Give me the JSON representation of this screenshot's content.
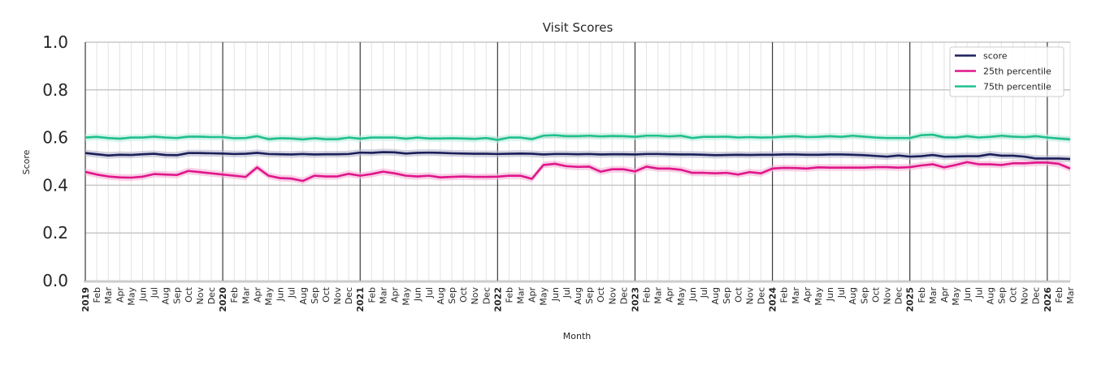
{
  "chart_data": {
    "type": "line",
    "title": "Visit Scores",
    "xlabel": "Month",
    "ylabel": "Score",
    "ylim": [
      0.0,
      1.0
    ],
    "yticks": [
      "0.0",
      "0.2",
      "0.4",
      "0.6",
      "0.8",
      "1.0"
    ],
    "grid": true,
    "legend_position": "upper right",
    "x_start": "2019-01",
    "x_end": "2026-03",
    "x_tick_labels": [
      "2019",
      "Feb",
      "Mar",
      "Apr",
      "May",
      "Jun",
      "Jul",
      "Aug",
      "Sep",
      "Oct",
      "Nov",
      "Dec",
      "2020",
      "Feb",
      "Mar",
      "Apr",
      "May",
      "Jun",
      "Jul",
      "Aug",
      "Sep",
      "Oct",
      "Nov",
      "Dec",
      "2021",
      "Feb",
      "Mar",
      "Apr",
      "May",
      "Jun",
      "Jul",
      "Aug",
      "Sep",
      "Oct",
      "Nov",
      "Dec",
      "2022",
      "Feb",
      "Mar",
      "Apr",
      "May",
      "Jun",
      "Jul",
      "Aug",
      "Sep",
      "Oct",
      "Nov",
      "Dec",
      "2023",
      "Feb",
      "Mar",
      "Apr",
      "May",
      "Jun",
      "Jul",
      "Aug",
      "Sep",
      "Oct",
      "Nov",
      "Dec",
      "2024",
      "Feb",
      "Mar",
      "Apr",
      "May",
      "Jun",
      "Jul",
      "Aug",
      "Sep",
      "Oct",
      "Nov",
      "Dec",
      "2025",
      "Feb",
      "Mar",
      "Apr",
      "May",
      "Jun",
      "Jul",
      "Aug",
      "Sep",
      "Oct",
      "Nov",
      "Dec",
      "2026",
      "Feb",
      "Mar"
    ],
    "series": [
      {
        "name": "score",
        "color": "#1b1f5a",
        "band_color": "#b5b8cb",
        "values": [
          0.535,
          0.53,
          0.525,
          0.528,
          0.527,
          0.53,
          0.532,
          0.527,
          0.526,
          0.535,
          0.535,
          0.534,
          0.533,
          0.531,
          0.532,
          0.536,
          0.531,
          0.53,
          0.529,
          0.531,
          0.529,
          0.53,
          0.53,
          0.531,
          0.537,
          0.536,
          0.539,
          0.538,
          0.533,
          0.536,
          0.537,
          0.536,
          0.534,
          0.533,
          0.532,
          0.532,
          0.531,
          0.532,
          0.533,
          0.532,
          0.529,
          0.531,
          0.531,
          0.53,
          0.531,
          0.529,
          0.53,
          0.53,
          0.529,
          0.531,
          0.531,
          0.53,
          0.529,
          0.529,
          0.528,
          0.526,
          0.527,
          0.528,
          0.527,
          0.528,
          0.528,
          0.529,
          0.529,
          0.528,
          0.528,
          0.529,
          0.529,
          0.528,
          0.526,
          0.523,
          0.52,
          0.525,
          0.52,
          0.522,
          0.527,
          0.52,
          0.521,
          0.522,
          0.522,
          0.53,
          0.524,
          0.524,
          0.52,
          0.512,
          0.512,
          0.512,
          0.51
        ]
      },
      {
        "name": "25th percentile",
        "color": "#e0168a",
        "band_color": "#f3b3d6",
        "values": [
          0.456,
          0.445,
          0.437,
          0.433,
          0.432,
          0.436,
          0.447,
          0.445,
          0.443,
          0.46,
          0.455,
          0.45,
          0.445,
          0.44,
          0.435,
          0.475,
          0.44,
          0.43,
          0.428,
          0.418,
          0.44,
          0.437,
          0.437,
          0.448,
          0.44,
          0.447,
          0.457,
          0.45,
          0.44,
          0.437,
          0.44,
          0.433,
          0.435,
          0.437,
          0.435,
          0.435,
          0.436,
          0.44,
          0.44,
          0.427,
          0.485,
          0.49,
          0.48,
          0.477,
          0.478,
          0.457,
          0.467,
          0.467,
          0.458,
          0.478,
          0.47,
          0.47,
          0.465,
          0.452,
          0.452,
          0.45,
          0.452,
          0.445,
          0.455,
          0.45,
          0.47,
          0.473,
          0.472,
          0.47,
          0.475,
          0.474,
          0.474,
          0.474,
          0.474,
          0.476,
          0.476,
          0.474,
          0.476,
          0.483,
          0.488,
          0.475,
          0.485,
          0.497,
          0.488,
          0.488,
          0.485,
          0.492,
          0.492,
          0.495,
          0.495,
          0.49,
          0.47
        ]
      },
      {
        "name": "75th percentile",
        "color": "#20c08e",
        "band_color": "#bdeedd",
        "values": [
          0.6,
          0.603,
          0.598,
          0.595,
          0.6,
          0.6,
          0.604,
          0.6,
          0.598,
          0.604,
          0.604,
          0.602,
          0.602,
          0.597,
          0.598,
          0.606,
          0.593,
          0.597,
          0.596,
          0.592,
          0.597,
          0.593,
          0.593,
          0.6,
          0.595,
          0.6,
          0.6,
          0.6,
          0.595,
          0.6,
          0.596,
          0.596,
          0.597,
          0.596,
          0.594,
          0.598,
          0.59,
          0.6,
          0.6,
          0.593,
          0.608,
          0.61,
          0.606,
          0.606,
          0.608,
          0.605,
          0.607,
          0.606,
          0.603,
          0.608,
          0.608,
          0.605,
          0.608,
          0.598,
          0.603,
          0.603,
          0.604,
          0.6,
          0.602,
          0.6,
          0.601,
          0.604,
          0.606,
          0.602,
          0.603,
          0.606,
          0.603,
          0.608,
          0.604,
          0.6,
          0.598,
          0.598,
          0.598,
          0.61,
          0.612,
          0.601,
          0.6,
          0.606,
          0.6,
          0.603,
          0.608,
          0.604,
          0.602,
          0.606,
          0.6,
          0.596,
          0.592
        ]
      }
    ]
  },
  "legend": {
    "items": [
      {
        "label": "score",
        "color": "#1b1f5a"
      },
      {
        "label": "25th percentile",
        "color": "#e0168a"
      },
      {
        "label": "75th percentile",
        "color": "#20c08e"
      }
    ]
  }
}
